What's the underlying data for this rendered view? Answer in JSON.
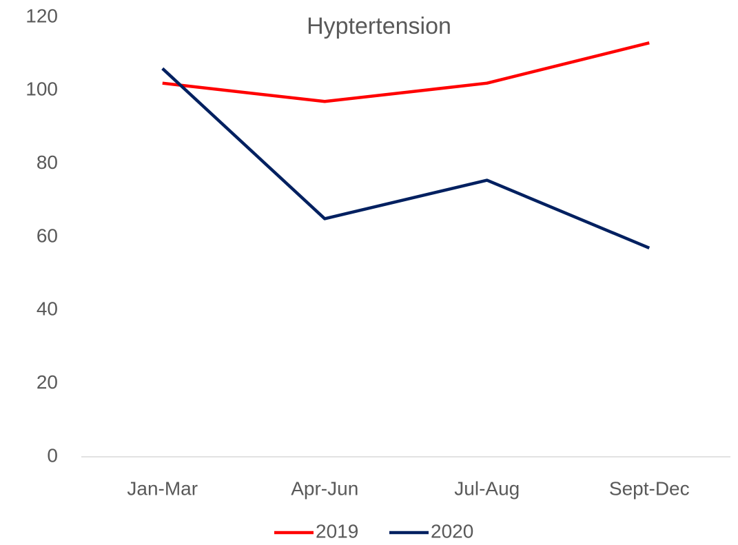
{
  "chart_data": {
    "type": "line",
    "title": "Hyptertension",
    "categories": [
      "Jan-Mar",
      "Apr-Jun",
      "Jul-Aug",
      "Sept-Dec"
    ],
    "series": [
      {
        "name": "2019",
        "color": "#ff0000",
        "values": [
          102,
          97,
          102,
          113
        ]
      },
      {
        "name": "2020",
        "color": "#002060",
        "values": [
          106,
          65,
          75.5,
          57
        ]
      }
    ],
    "ylim": [
      0,
      120
    ],
    "yticks": [
      0,
      20,
      40,
      60,
      80,
      100,
      120
    ],
    "grid": false,
    "legend": "bottom"
  }
}
